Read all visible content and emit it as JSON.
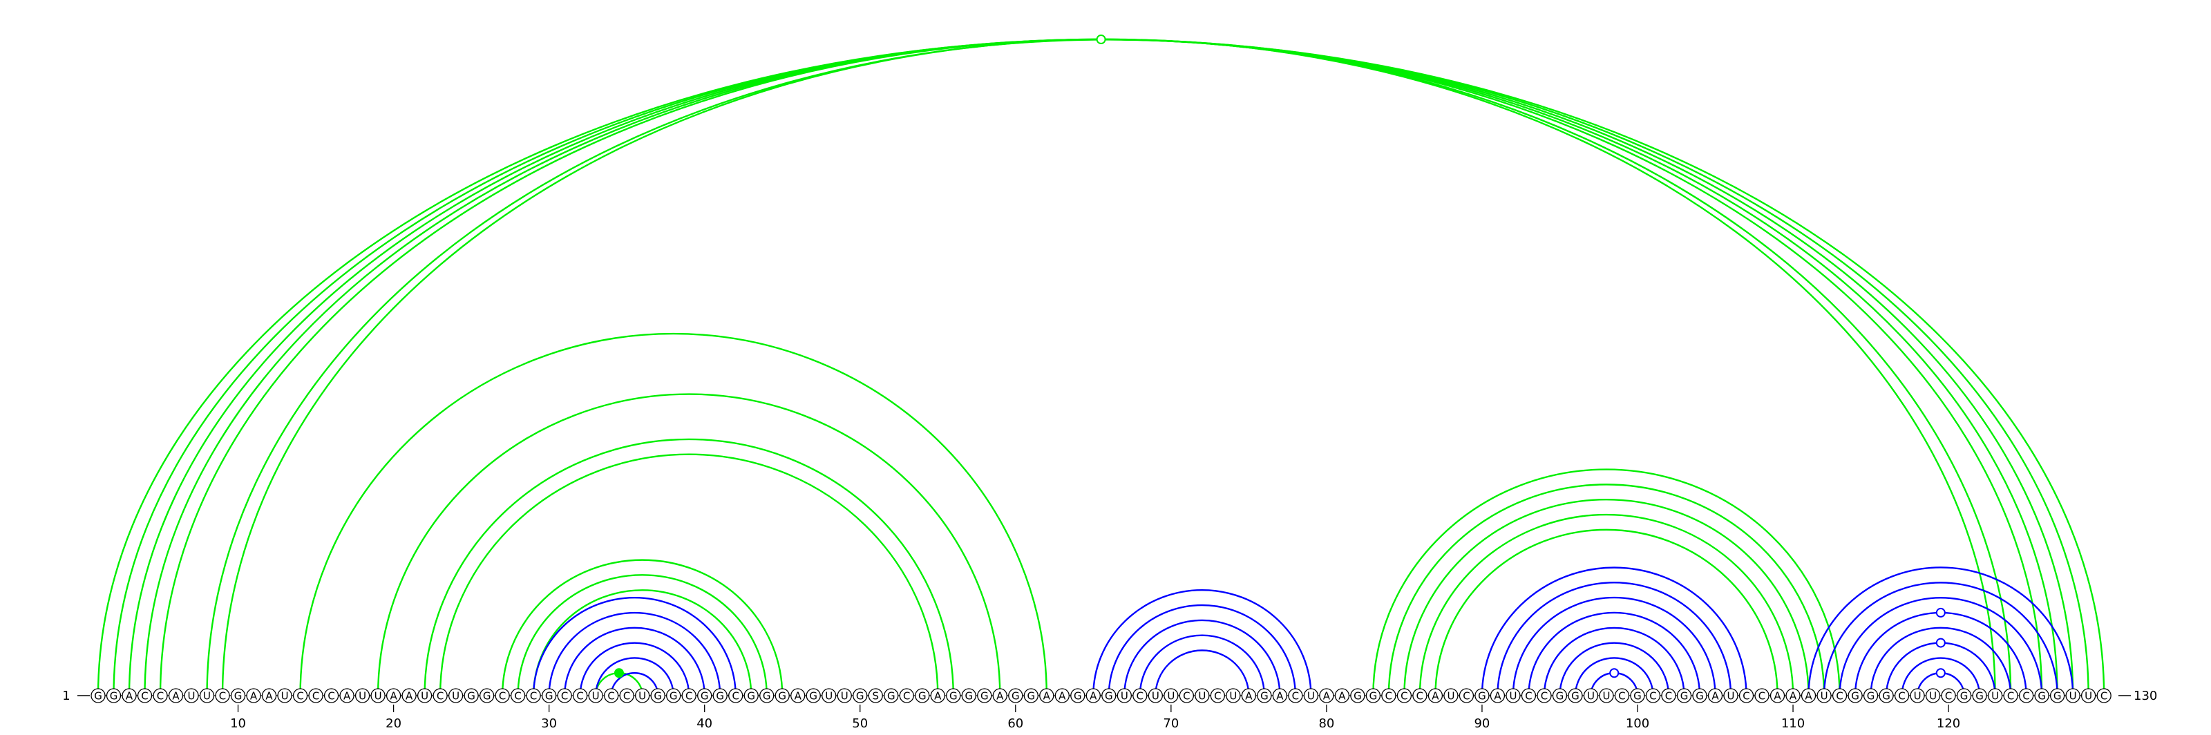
{
  "sequence": "GGACCAUUCGAAUCCCAUUAAUCUGGCCCGCCUCCUGGCGGCGGGAGUUGSGCGAGGGAGGAAGAGUCUUCUCUAGACUAAGGCCCAUCGAUCCGGUUCGCCGGAUCCAAAUCGGGCUUCGGUCCGGUUC",
  "start_label": "1",
  "end_label": "130",
  "ticks": [
    "10",
    "20",
    "30",
    "40",
    "50",
    "60",
    "70",
    "80",
    "90",
    "100",
    "110",
    "120"
  ],
  "colors": {
    "green": "#00ee00",
    "blue": "#0000ff",
    "backbone": "#000000"
  },
  "arcs": [
    {
      "i": 1,
      "j": 130,
      "color": "green"
    },
    {
      "i": 2,
      "j": 129,
      "color": "green"
    },
    {
      "i": 3,
      "j": 128,
      "color": "green"
    },
    {
      "i": 4,
      "j": 127,
      "color": "green"
    },
    {
      "i": 5,
      "j": 126,
      "color": "green"
    },
    {
      "i": 8,
      "j": 124,
      "color": "green"
    },
    {
      "i": 9,
      "j": 123,
      "color": "green"
    },
    {
      "i": 14,
      "j": 62,
      "color": "green"
    },
    {
      "i": 19,
      "j": 59,
      "color": "green"
    },
    {
      "i": 22,
      "j": 56,
      "color": "green"
    },
    {
      "i": 23,
      "j": 55,
      "color": "green"
    },
    {
      "i": 27,
      "j": 45,
      "color": "green"
    },
    {
      "i": 28,
      "j": 44,
      "color": "green"
    },
    {
      "i": 29,
      "j": 43,
      "color": "green"
    },
    {
      "i": 33,
      "j": 36,
      "color": "green"
    },
    {
      "i": 29,
      "j": 42,
      "color": "blue"
    },
    {
      "i": 30,
      "j": 41,
      "color": "blue"
    },
    {
      "i": 31,
      "j": 40,
      "color": "blue"
    },
    {
      "i": 32,
      "j": 39,
      "color": "blue"
    },
    {
      "i": 33,
      "j": 38,
      "color": "blue"
    },
    {
      "i": 34,
      "j": 37,
      "color": "blue"
    },
    {
      "i": 65,
      "j": 79,
      "color": "blue"
    },
    {
      "i": 66,
      "j": 78,
      "color": "blue"
    },
    {
      "i": 67,
      "j": 77,
      "color": "blue"
    },
    {
      "i": 68,
      "j": 76,
      "color": "blue"
    },
    {
      "i": 69,
      "j": 75,
      "color": "blue"
    },
    {
      "i": 83,
      "j": 113,
      "color": "green"
    },
    {
      "i": 84,
      "j": 112,
      "color": "green"
    },
    {
      "i": 85,
      "j": 111,
      "color": "green"
    },
    {
      "i": 86,
      "j": 110,
      "color": "green"
    },
    {
      "i": 87,
      "j": 109,
      "color": "green"
    },
    {
      "i": 90,
      "j": 107,
      "color": "blue"
    },
    {
      "i": 91,
      "j": 106,
      "color": "blue"
    },
    {
      "i": 92,
      "j": 105,
      "color": "blue"
    },
    {
      "i": 93,
      "j": 104,
      "color": "blue"
    },
    {
      "i": 94,
      "j": 103,
      "color": "blue"
    },
    {
      "i": 95,
      "j": 102,
      "color": "blue"
    },
    {
      "i": 96,
      "j": 101,
      "color": "blue"
    },
    {
      "i": 97,
      "j": 100,
      "color": "blue"
    },
    {
      "i": 111,
      "j": 128,
      "color": "blue"
    },
    {
      "i": 112,
      "j": 127,
      "color": "blue"
    },
    {
      "i": 113,
      "j": 126,
      "color": "blue"
    },
    {
      "i": 114,
      "j": 125,
      "color": "blue"
    },
    {
      "i": 115,
      "j": 124,
      "color": "blue"
    },
    {
      "i": 116,
      "j": 123,
      "color": "blue"
    },
    {
      "i": 117,
      "j": 122,
      "color": "blue"
    },
    {
      "i": 118,
      "j": 121,
      "color": "blue"
    }
  ],
  "markers": [
    {
      "arc_i": 1,
      "arc_j": 130,
      "filled": false,
      "color": "green"
    },
    {
      "arc_i": 33,
      "arc_j": 36,
      "filled": true,
      "color": "green"
    },
    {
      "arc_i": 97,
      "arc_j": 100,
      "filled": false,
      "color": "blue"
    },
    {
      "arc_i": 118,
      "arc_j": 121,
      "filled": false,
      "color": "blue"
    },
    {
      "arc_i": 116,
      "arc_j": 123,
      "filled": false,
      "color": "blue"
    },
    {
      "arc_i": 114,
      "arc_j": 125,
      "filled": false,
      "color": "blue"
    }
  ]
}
